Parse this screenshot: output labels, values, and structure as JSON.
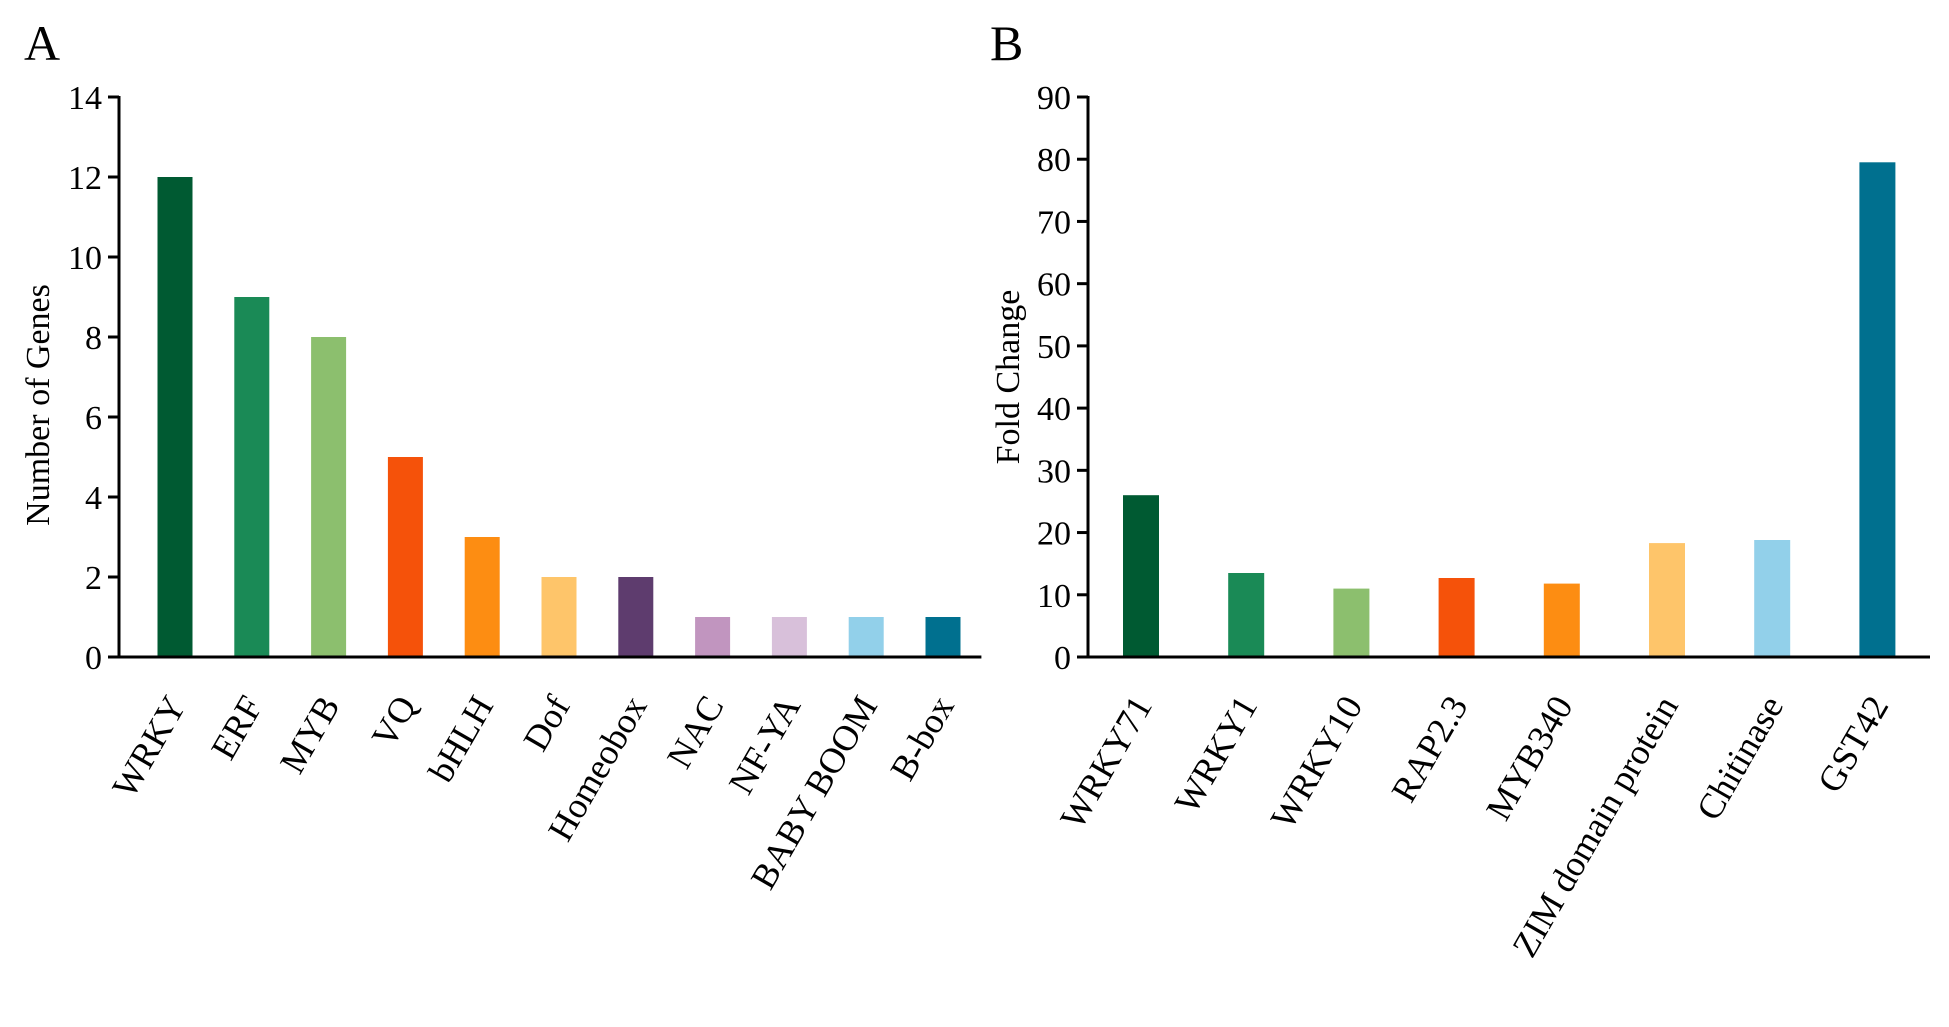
{
  "chart_data": [
    {
      "panel": "A",
      "type": "bar",
      "title": "",
      "xlabel": "",
      "ylabel": "Number of Genes",
      "ylim": [
        0,
        14
      ],
      "yticks": [
        0,
        2,
        4,
        6,
        8,
        10,
        12,
        14
      ],
      "grid": false,
      "categories": [
        "WRKY",
        "ERF",
        "MYB",
        "VQ",
        "bHLH",
        "Dof",
        "Homeobox",
        "NAC",
        "NF-YA",
        "BABY BOOM",
        "B-box"
      ],
      "values": [
        12,
        9,
        8,
        5,
        3,
        2,
        2,
        1,
        1,
        1,
        1
      ],
      "colors": [
        "#005a32",
        "#1a8a56",
        "#8cbf6e",
        "#f5520a",
        "#fd8d12",
        "#fec56a",
        "#5e3c6e",
        "#c195bf",
        "#d8c0da",
        "#92d0ea",
        "#00708f"
      ]
    },
    {
      "panel": "B",
      "type": "bar",
      "title": "",
      "xlabel": "",
      "ylabel": "Fold Change",
      "ylim": [
        0,
        90
      ],
      "yticks": [
        0,
        10,
        20,
        30,
        40,
        50,
        60,
        70,
        80,
        90
      ],
      "grid": false,
      "categories": [
        "WRKY71",
        "WRKY1",
        "WRKY10",
        "RAP2.3",
        "MYB340",
        "ZIM domain protein",
        "Chitinase",
        "GST42"
      ],
      "values": [
        26,
        13.5,
        11,
        12.7,
        11.8,
        18.3,
        18.8,
        79.5
      ],
      "colors": [
        "#005a32",
        "#1a8a56",
        "#8cbf6e",
        "#f5520a",
        "#fd8d12",
        "#fec56a",
        "#92d0ea",
        "#00708f"
      ]
    }
  ]
}
